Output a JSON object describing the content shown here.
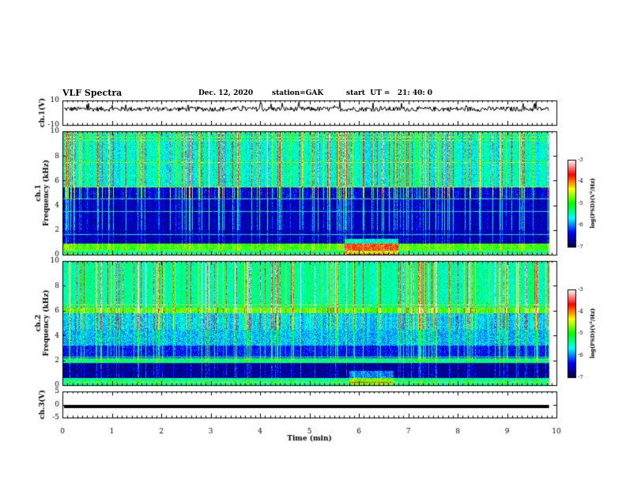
{
  "header": {
    "title": "VLF Spectra",
    "date": "Dec. 12, 2020",
    "station": "station=GAK",
    "start": "start  UT =   21: 40: 0"
  },
  "chart_data": [
    {
      "type": "line",
      "panel": "ch1-voltage",
      "ylabel": "ch.1(V)",
      "ylim": [
        -10,
        10
      ],
      "yticks": [
        "10",
        "-10"
      ],
      "description_level": 3
    },
    {
      "type": "heatmap",
      "panel": "ch1-spectrogram",
      "ylabel": "ch.1\nFrequency (kHz)",
      "ylim": [
        0,
        10
      ],
      "yticks": [
        "0",
        "2",
        "4",
        "6",
        "8",
        "10"
      ],
      "colorbar": {
        "label": "log(PSD)(V²/Hz)",
        "ticks": [
          "-3",
          "-4",
          "-5",
          "-6",
          "-7"
        ],
        "range": [
          -7,
          -3
        ]
      }
    },
    {
      "type": "heatmap",
      "panel": "ch2-spectrogram",
      "ylabel": "ch.2\nFrequency (kHz)",
      "ylim": [
        0,
        10
      ],
      "yticks": [
        "0",
        "2",
        "4",
        "6",
        "8",
        "10"
      ],
      "colorbar": {
        "label": "log(PSD)(V²/Hz)",
        "ticks": [
          "-3",
          "-4",
          "-5",
          "-6",
          "-7"
        ],
        "range": [
          -7,
          -3
        ]
      }
    },
    {
      "type": "line",
      "panel": "ch3-voltage",
      "ylabel": "ch.3(V)",
      "ylim": [
        -5,
        5
      ],
      "yticks": [
        "5",
        "0",
        "-5"
      ],
      "level": -0.8
    }
  ],
  "xaxis": {
    "xlabel": "Time (min)",
    "xlim": [
      0,
      10
    ],
    "xticks": [
      "0",
      "1",
      "2",
      "3",
      "4",
      "5",
      "6",
      "7",
      "8",
      "9",
      "10"
    ],
    "data_end": 9.85
  },
  "colors": {
    "background": "#ffffff",
    "axis": "#000000",
    "colormap": [
      "#000040",
      "#0000ff",
      "#00ffff",
      "#00ff00",
      "#ffff00",
      "#ff0000",
      "#ffffff"
    ]
  }
}
